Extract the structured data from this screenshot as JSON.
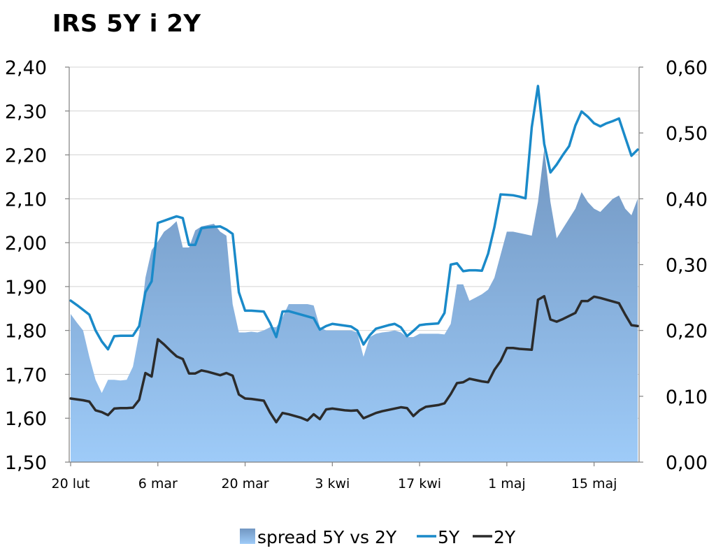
{
  "chart_data": {
    "type": "line",
    "title": "IRS 5Y i 2Y",
    "left_axis": {
      "ticks": [
        "2,40",
        "2,30",
        "2,20",
        "2,10",
        "2,00",
        "1,90",
        "1,80",
        "1,70",
        "1,60",
        "1,50"
      ],
      "min": 1.5,
      "max": 2.4
    },
    "right_axis": {
      "ticks": [
        "0,60",
        "0,50",
        "0,40",
        "0,30",
        "0,20",
        "0,10",
        "0,00"
      ],
      "min": 0.0,
      "max": 0.6
    },
    "x_ticks": [
      "20 lut",
      "6 mar",
      "20 mar",
      "3 kwi",
      "17 kwi",
      "1 maj",
      "15 maj"
    ],
    "x_tick_index": [
      0,
      14,
      28,
      42,
      56,
      70,
      84
    ],
    "grid": true,
    "legend_position": "bottom",
    "series": [
      {
        "name": "spread 5Y vs 2Y",
        "kind": "area",
        "axis": "right",
        "color_top": "#7297c2",
        "color_bottom": "#9ecbf8",
        "values": [
          0.225,
          0.212,
          0.2,
          0.16,
          0.125,
          0.105,
          0.125,
          0.125,
          0.124,
          0.125,
          0.145,
          0.195,
          0.28,
          0.322,
          0.335,
          0.35,
          0.357,
          0.366,
          0.326,
          0.326,
          0.352,
          0.358,
          0.36,
          0.362,
          0.35,
          0.344,
          0.24,
          0.197,
          0.197,
          0.198,
          0.197,
          0.2,
          0.205,
          0.205,
          0.22,
          0.24,
          0.24,
          0.24,
          0.24,
          0.238,
          0.205,
          0.2,
          0.2,
          0.2,
          0.2,
          0.2,
          0.197,
          0.16,
          0.19,
          0.195,
          0.197,
          0.198,
          0.2,
          0.197,
          0.19,
          0.19,
          0.195,
          0.195,
          0.195,
          0.195,
          0.194,
          0.21,
          0.27,
          0.27,
          0.245,
          0.25,
          0.255,
          0.262,
          0.28,
          0.315,
          0.35,
          0.35,
          0.348,
          0.346,
          0.344,
          0.395,
          0.475,
          0.395,
          0.34,
          0.355,
          0.37,
          0.385,
          0.41,
          0.395,
          0.385,
          0.38,
          0.39,
          0.4,
          0.405,
          0.385,
          0.375,
          0.4
        ]
      },
      {
        "name": "5Y",
        "kind": "line",
        "axis": "left",
        "color": "#1a8ac9",
        "values": [
          1.868,
          1.858,
          1.847,
          1.836,
          1.8,
          1.775,
          1.757,
          1.787,
          1.788,
          1.788,
          1.788,
          1.81,
          1.887,
          1.912,
          2.045,
          2.05,
          2.055,
          2.06,
          2.056,
          1.995,
          1.995,
          2.033,
          2.035,
          2.036,
          2.037,
          2.03,
          2.02,
          1.887,
          1.845,
          1.845,
          1.844,
          1.843,
          1.817,
          1.785,
          1.843,
          1.844,
          1.84,
          1.836,
          1.832,
          1.828,
          1.802,
          1.81,
          1.815,
          1.813,
          1.811,
          1.809,
          1.8,
          1.768,
          1.789,
          1.804,
          1.808,
          1.812,
          1.815,
          1.807,
          1.787,
          1.799,
          1.812,
          1.814,
          1.815,
          1.816,
          1.84,
          1.95,
          1.953,
          1.935,
          1.937,
          1.937,
          1.936,
          1.975,
          2.035,
          2.11,
          2.109,
          2.108,
          2.105,
          2.101,
          2.263,
          2.357,
          2.225,
          2.16,
          2.178,
          2.2,
          2.22,
          2.267,
          2.299,
          2.287,
          2.272,
          2.265,
          2.272,
          2.277,
          2.283,
          2.24,
          2.198,
          2.212
        ]
      },
      {
        "name": "2Y",
        "kind": "line",
        "axis": "left",
        "color": "#2b2b2b",
        "values": [
          1.645,
          1.643,
          1.641,
          1.638,
          1.618,
          1.614,
          1.607,
          1.622,
          1.623,
          1.623,
          1.624,
          1.642,
          1.703,
          1.695,
          1.78,
          1.768,
          1.754,
          1.741,
          1.735,
          1.702,
          1.702,
          1.709,
          1.706,
          1.702,
          1.698,
          1.703,
          1.697,
          1.654,
          1.645,
          1.644,
          1.642,
          1.64,
          1.613,
          1.591,
          1.612,
          1.609,
          1.605,
          1.601,
          1.595,
          1.609,
          1.598,
          1.62,
          1.622,
          1.62,
          1.618,
          1.617,
          1.618,
          1.6,
          1.606,
          1.612,
          1.616,
          1.619,
          1.622,
          1.625,
          1.623,
          1.605,
          1.618,
          1.626,
          1.628,
          1.63,
          1.634,
          1.655,
          1.68,
          1.682,
          1.69,
          1.687,
          1.684,
          1.682,
          1.71,
          1.73,
          1.76,
          1.76,
          1.758,
          1.757,
          1.756,
          1.87,
          1.878,
          1.825,
          1.82,
          1.826,
          1.833,
          1.84,
          1.867,
          1.867,
          1.877,
          1.874,
          1.87,
          1.866,
          1.862,
          1.836,
          1.812,
          1.81
        ]
      }
    ]
  }
}
